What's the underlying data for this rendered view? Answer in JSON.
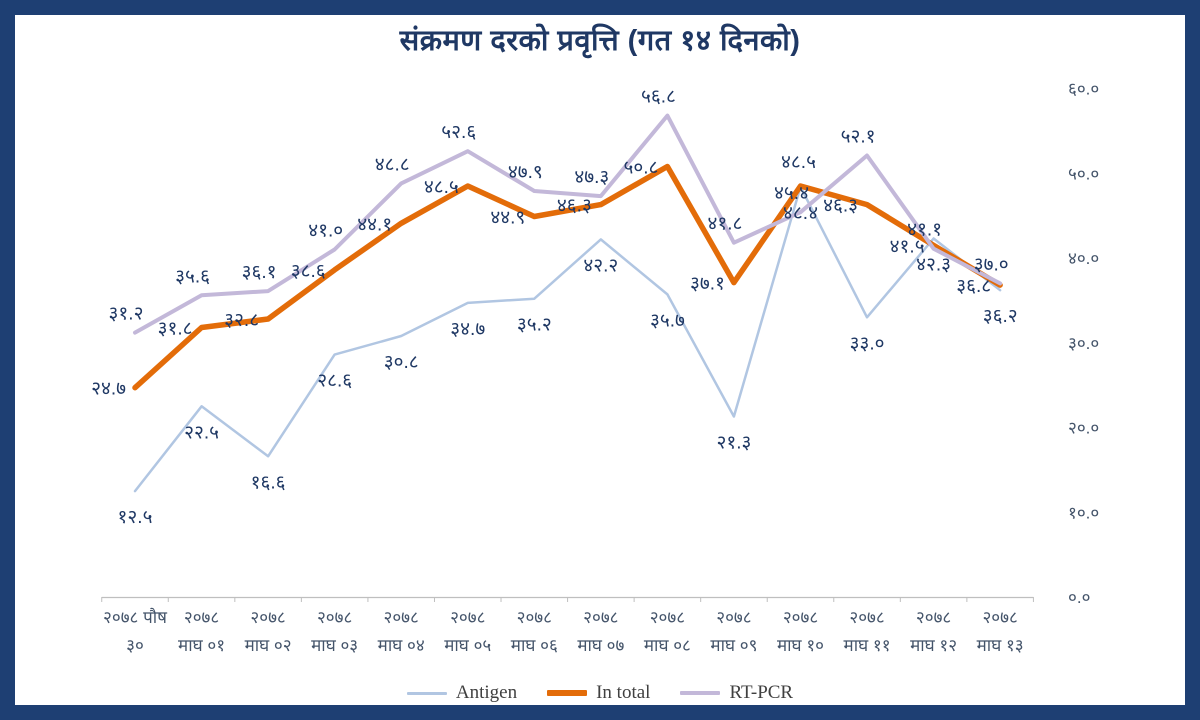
{
  "chart_data": {
    "type": "line",
    "title": "संक्रमण दरको प्रवृत्ति (गत १४ दिनको)",
    "xlabel": "",
    "ylabel": "",
    "ylim": [
      0,
      60
    ],
    "grid": false,
    "legend_position": "bottom",
    "y_ticks": [
      {
        "label": "०.०",
        "value": 0
      },
      {
        "label": "१०.०",
        "value": 10
      },
      {
        "label": "२०.०",
        "value": 20
      },
      {
        "label": "३०.०",
        "value": 30
      },
      {
        "label": "४०.०",
        "value": 40
      },
      {
        "label": "५०.०",
        "value": 50
      },
      {
        "label": "६०.०",
        "value": 60
      }
    ],
    "categories": [
      {
        "l1": "२०७८ पौष",
        "l2": "३०"
      },
      {
        "l1": "२०७८",
        "l2": "माघ ०१"
      },
      {
        "l1": "२०७८",
        "l2": "माघ ०२"
      },
      {
        "l1": "२०७८",
        "l2": "माघ ०३"
      },
      {
        "l1": "२०७८",
        "l2": "माघ ०४"
      },
      {
        "l1": "२०७८",
        "l2": "माघ ०५"
      },
      {
        "l1": "२०७८",
        "l2": "माघ ०६"
      },
      {
        "l1": "२०७८",
        "l2": "माघ ०७"
      },
      {
        "l1": "२०७८",
        "l2": "माघ ०८"
      },
      {
        "l1": "२०७८",
        "l2": "माघ ०९"
      },
      {
        "l1": "२०७८",
        "l2": "माघ १०"
      },
      {
        "l1": "२०७८",
        "l2": "माघ ११"
      },
      {
        "l1": "२०७८",
        "l2": "माघ १२"
      },
      {
        "l1": "२०७८",
        "l2": "माघ १३"
      }
    ],
    "series": [
      {
        "name": "Antigen",
        "color": "#b1c6e2",
        "width": 2.5,
        "values": [
          12.5,
          22.5,
          16.6,
          28.6,
          30.8,
          34.7,
          35.2,
          42.2,
          35.7,
          21.3,
          48.4,
          33.0,
          42.3,
          36.2
        ],
        "labels": [
          "१२.५",
          "२२.५",
          "१६.६",
          "२८.६",
          "३०.८",
          "३४.७",
          "३५.२",
          "४२.२",
          "३५.७",
          "२१.३",
          "४८.४",
          "३३.०",
          "४२.३",
          "३६.२"
        ]
      },
      {
        "name": "In total",
        "color": "#e36c09",
        "width": 5.5,
        "values": [
          24.7,
          31.8,
          32.8,
          38.6,
          44.1,
          48.5,
          44.9,
          46.3,
          50.8,
          37.1,
          48.5,
          46.3,
          41.5,
          36.8
        ],
        "labels": [
          "२४.७",
          "३१.८",
          "३२.८",
          "३८.६",
          "४४.१",
          "४८.५",
          "४४.९",
          "४६.३",
          "५०.८",
          "३७.१",
          "४८.५",
          "४६.३",
          "४१.५",
          "३६.८"
        ]
      },
      {
        "name": "RT-PCR",
        "color": "#c3b8d9",
        "width": 4,
        "values": [
          31.2,
          35.6,
          36.1,
          41.0,
          48.8,
          52.6,
          47.9,
          47.3,
          56.8,
          41.8,
          45.4,
          52.1,
          41.1,
          37.0
        ],
        "labels": [
          "३१.२",
          "३५.६",
          "३६.१",
          "४१.०",
          "४८.८",
          "५२.६",
          "४७.९",
          "४७.३",
          "५६.८",
          "४१.८",
          "४५.४",
          "५२.१",
          "४१.१",
          "३७.०"
        ]
      }
    ]
  },
  "colors": {
    "frame": "#1e3f73",
    "data_label": "#1f3864",
    "axis_label": "#44546a",
    "axis_line": "#bfbfbf",
    "title": "#1f3864"
  }
}
